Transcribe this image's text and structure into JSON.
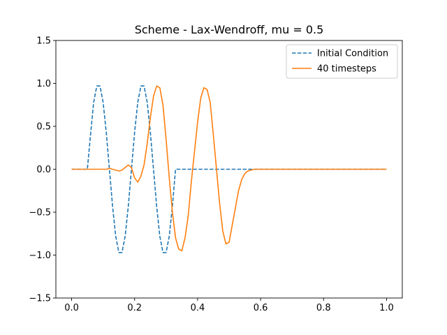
{
  "chart_data": {
    "type": "line",
    "title": "Scheme - Lax-Wendroff, mu = 0.5",
    "xlabel": "",
    "ylabel": "",
    "xlim": [
      -0.05,
      1.05
    ],
    "ylim": [
      -1.5,
      1.5
    ],
    "xticks": [
      0.0,
      0.2,
      0.4,
      0.6,
      0.8,
      1.0
    ],
    "xtick_labels": [
      "0.0",
      "0.2",
      "0.4",
      "0.6",
      "0.8",
      "1.0"
    ],
    "yticks": [
      -1.5,
      -1.0,
      -0.5,
      0.0,
      0.5,
      1.0,
      1.5
    ],
    "ytick_labels": [
      "−1.5",
      "−1.0",
      "−0.5",
      "0.0",
      "0.5",
      "1.0",
      "1.5"
    ],
    "grid": false,
    "legend_position": "top-right",
    "series": [
      {
        "name": "Initial Condition",
        "color": "#1f77b4",
        "style": "dashed",
        "x": [
          0.0,
          0.01,
          0.02,
          0.03,
          0.04,
          0.05,
          0.06,
          0.07,
          0.08,
          0.09,
          0.1,
          0.11,
          0.12,
          0.13,
          0.14,
          0.15,
          0.16,
          0.17,
          0.18,
          0.19,
          0.2,
          0.21,
          0.22,
          0.23,
          0.24,
          0.25,
          0.26,
          0.27,
          0.28,
          0.29,
          0.3,
          0.31,
          0.32,
          0.33,
          0.34,
          0.35,
          0.36,
          0.37,
          0.38,
          0.39,
          0.4,
          0.41,
          0.42,
          0.43,
          0.44,
          0.45,
          0.46,
          0.47,
          0.48,
          0.49,
          0.5,
          0.51,
          0.52,
          0.53,
          0.54,
          0.55,
          0.56,
          0.57,
          0.58,
          0.59,
          0.6,
          0.61,
          0.62,
          0.63,
          0.64,
          0.65,
          0.66,
          0.67,
          0.68,
          0.69,
          0.7,
          0.71,
          0.72,
          0.73,
          0.74,
          0.75,
          0.76,
          0.77,
          0.78,
          0.79,
          0.8,
          0.81,
          0.82,
          0.83,
          0.84,
          0.85,
          0.86,
          0.87,
          0.88,
          0.89,
          0.9,
          0.91,
          0.92,
          0.93,
          0.94,
          0.95,
          0.96,
          0.97,
          0.98,
          0.99,
          1.0
        ],
        "y": [
          0,
          0,
          0,
          0,
          0,
          0,
          0.4,
          0.78,
          0.97,
          0.97,
          0.78,
          0.43,
          0,
          -0.43,
          -0.78,
          -0.97,
          -0.97,
          -0.78,
          -0.43,
          0,
          0.43,
          0.78,
          0.97,
          0.97,
          0.78,
          0.43,
          0,
          -0.43,
          -0.78,
          -0.97,
          -0.97,
          -0.78,
          -0.43,
          0,
          0,
          0,
          0,
          0,
          0,
          0,
          0,
          0,
          0,
          0,
          0,
          0,
          0,
          0,
          0,
          0,
          0,
          0,
          0,
          0,
          0,
          0,
          0,
          0,
          0,
          0,
          0,
          0,
          0,
          0,
          0,
          0,
          0,
          0,
          0,
          0,
          0,
          0,
          0,
          0,
          0,
          0,
          0,
          0,
          0,
          0,
          0,
          0,
          0,
          0,
          0,
          0,
          0,
          0,
          0,
          0,
          0,
          0,
          0,
          0,
          0,
          0,
          0,
          0,
          0,
          0,
          0
        ]
      },
      {
        "name": "40 timesteps",
        "color": "#ff7f0e",
        "style": "solid",
        "x": [
          0.0,
          0.01,
          0.02,
          0.03,
          0.04,
          0.05,
          0.06,
          0.07,
          0.08,
          0.09,
          0.1,
          0.11,
          0.12,
          0.13,
          0.14,
          0.15,
          0.16,
          0.17,
          0.18,
          0.19,
          0.2,
          0.21,
          0.22,
          0.23,
          0.24,
          0.25,
          0.26,
          0.27,
          0.28,
          0.29,
          0.3,
          0.31,
          0.32,
          0.33,
          0.34,
          0.35,
          0.36,
          0.37,
          0.38,
          0.39,
          0.4,
          0.41,
          0.42,
          0.43,
          0.44,
          0.45,
          0.46,
          0.47,
          0.48,
          0.49,
          0.5,
          0.51,
          0.52,
          0.53,
          0.54,
          0.55,
          0.56,
          0.57,
          0.58,
          0.59,
          0.6,
          0.61,
          0.62,
          0.63,
          0.64,
          0.65,
          0.66,
          0.67,
          0.68,
          0.69,
          0.7,
          0.71,
          0.72,
          0.73,
          0.74,
          0.75,
          0.76,
          0.77,
          0.78,
          0.79,
          0.8,
          0.81,
          0.82,
          0.83,
          0.84,
          0.85,
          0.86,
          0.87,
          0.88,
          0.89,
          0.9,
          0.91,
          0.92,
          0.93,
          0.94,
          0.95,
          0.96,
          0.97,
          0.98,
          0.99,
          1.0
        ],
        "y": [
          0,
          0,
          0,
          0,
          0,
          0,
          0,
          0,
          0,
          0,
          0,
          0,
          0.01,
          0,
          -0.01,
          -0.02,
          -0.01,
          0.02,
          0.05,
          0.02,
          -0.1,
          -0.15,
          -0.08,
          0.05,
          0.3,
          0.6,
          0.85,
          0.97,
          0.95,
          0.75,
          0.35,
          -0.1,
          -0.5,
          -0.8,
          -0.93,
          -0.95,
          -0.8,
          -0.55,
          -0.15,
          0.2,
          0.55,
          0.83,
          0.95,
          0.93,
          0.78,
          0.4,
          0,
          -0.4,
          -0.72,
          -0.87,
          -0.85,
          -0.65,
          -0.45,
          -0.25,
          -0.12,
          -0.05,
          -0.02,
          -0.01,
          0,
          0,
          0,
          0,
          0,
          0,
          0,
          0,
          0,
          0,
          0,
          0,
          0,
          0,
          0,
          0,
          0,
          0,
          0,
          0,
          0,
          0,
          0,
          0,
          0,
          0,
          0,
          0,
          0,
          0,
          0,
          0,
          0,
          0,
          0,
          0,
          0,
          0,
          0,
          0,
          0,
          0,
          0
        ]
      }
    ]
  }
}
